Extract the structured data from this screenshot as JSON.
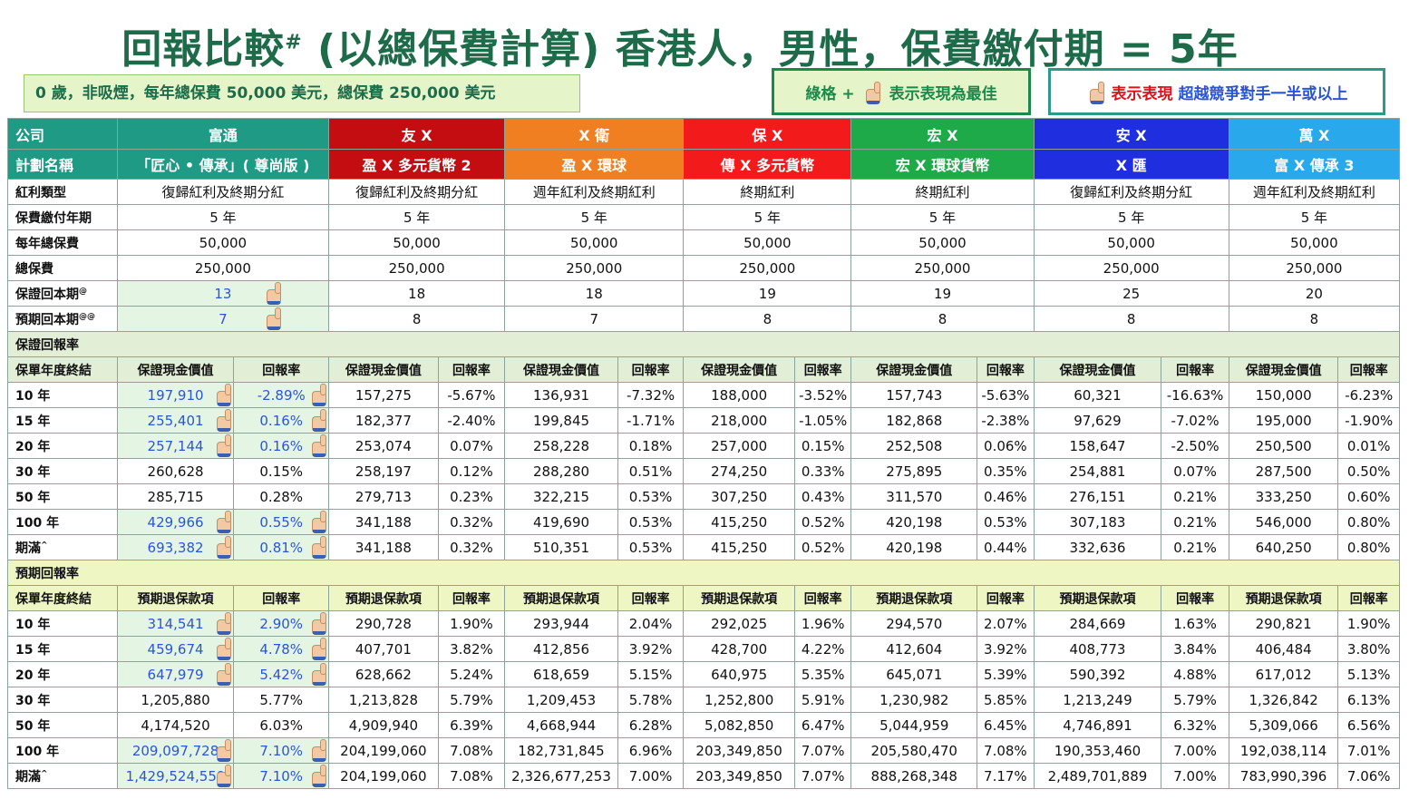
{
  "title": "回報比較",
  "title_mark": "#",
  "title_rest": " (以總保費計算) 香港人，男性，保費繳付期 = 5年",
  "subtitle": "0 歲，非吸煙，每年總保費 50,000 美元，總保費 250,000 美元",
  "legend_best": {
    "prefix": "綠格 +",
    "suffix": "表示表現為最佳"
  },
  "legend_beat": {
    "red": "表示表現",
    "blue": "超越競爭對手一半或以上"
  },
  "colors": {
    "teal": "#1f9a84",
    "darkred": "#c30d10",
    "orange": "#f07f22",
    "red": "#f21a1a",
    "green": "#1faa4a",
    "blue": "#1f2fe0",
    "sky": "#2aa8ec",
    "highlight": "#e4f6e3",
    "highlight_text": "#2b55d6"
  },
  "rows_top": {
    "company_label": "公司",
    "companies": [
      "富通",
      "友 X",
      "X 衛",
      "保 X",
      "宏 X",
      "安 X",
      "萬 X"
    ],
    "plan_label": "計劃名稱",
    "plans": [
      "「匠心 • 傳承」( 尊尚版 )",
      "盈 X 多元貨幣 2",
      "盈 X 環球",
      "傳 X 多元貨幣",
      "宏 X 環球貨幣",
      "X 匯",
      "富 X 傳承 3"
    ],
    "dividend_label": "紅利類型",
    "dividends": [
      "復歸紅利及終期分紅",
      "復歸紅利及終期分紅",
      "週年紅利及終期紅利",
      "終期紅利",
      "終期紅利",
      "復歸紅利及終期分紅",
      "週年紅利及終期紅利"
    ],
    "term_label": "保費繳付年期",
    "terms": [
      "5 年",
      "5 年",
      "5 年",
      "5 年",
      "5 年",
      "5 年",
      "5 年"
    ],
    "annual_label": "每年總保費",
    "annuals": [
      "50,000",
      "50,000",
      "50,000",
      "50,000",
      "50,000",
      "50,000",
      "50,000"
    ],
    "total_label": "總保費",
    "totals": [
      "250,000",
      "250,000",
      "250,000",
      "250,000",
      "250,000",
      "250,000",
      "250,000"
    ],
    "g_breakeven_label": "保證回本期",
    "g_breakeven_mark": "@",
    "g_breakeven": [
      "13",
      "18",
      "18",
      "19",
      "19",
      "25",
      "20"
    ],
    "p_breakeven_label": "預期回本期",
    "p_breakeven_mark": "@@",
    "p_breakeven": [
      "7",
      "8",
      "7",
      "8",
      "8",
      "8",
      "8"
    ]
  },
  "guaranteed": {
    "section": "保證回報率",
    "year_col": "保單年度終結",
    "value_col": "保證現金價值",
    "rate_col": "回報率",
    "rows": [
      {
        "year": "10 年",
        "cells": [
          "197,910",
          "-2.89%",
          "157,275",
          "-5.67%",
          "136,931",
          "-7.32%",
          "188,000",
          "-3.52%",
          "157,743",
          "-5.63%",
          "60,321",
          "-16.63%",
          "150,000",
          "-6.23%"
        ],
        "hl": true
      },
      {
        "year": "15 年",
        "cells": [
          "255,401",
          "0.16%",
          "182,377",
          "-2.40%",
          "199,845",
          "-1.71%",
          "218,000",
          "-1.05%",
          "182,868",
          "-2.38%",
          "97,629",
          "-7.02%",
          "195,000",
          "-1.90%"
        ],
        "hl": true
      },
      {
        "year": "20 年",
        "cells": [
          "257,144",
          "0.16%",
          "253,074",
          "0.07%",
          "258,228",
          "0.18%",
          "257,000",
          "0.15%",
          "252,508",
          "0.06%",
          "158,647",
          "-2.50%",
          "250,500",
          "0.01%"
        ],
        "hl": true
      },
      {
        "year": "30 年",
        "cells": [
          "260,628",
          "0.15%",
          "258,197",
          "0.12%",
          "288,280",
          "0.51%",
          "274,250",
          "0.33%",
          "275,895",
          "0.35%",
          "254,881",
          "0.07%",
          "287,500",
          "0.50%"
        ],
        "hl": false
      },
      {
        "year": "50 年",
        "cells": [
          "285,715",
          "0.28%",
          "279,713",
          "0.23%",
          "322,215",
          "0.53%",
          "307,250",
          "0.43%",
          "311,570",
          "0.46%",
          "276,151",
          "0.21%",
          "333,250",
          "0.60%"
        ],
        "hl": false
      },
      {
        "year": "100 年",
        "cells": [
          "429,966",
          "0.55%",
          "341,188",
          "0.32%",
          "419,690",
          "0.53%",
          "415,250",
          "0.52%",
          "420,198",
          "0.53%",
          "307,183",
          "0.21%",
          "546,000",
          "0.80%"
        ],
        "hl": true
      },
      {
        "year": "期滿",
        "mark": "^",
        "cells": [
          "693,382",
          "0.81%",
          "341,188",
          "0.32%",
          "510,351",
          "0.53%",
          "415,250",
          "0.52%",
          "420,198",
          "0.44%",
          "332,636",
          "0.21%",
          "640,250",
          "0.80%"
        ],
        "hl": true
      }
    ]
  },
  "projected": {
    "section": "預期回報率",
    "year_col": "保單年度終結",
    "value_col": "預期退保款項",
    "rate_col": "回報率",
    "rows": [
      {
        "year": "10 年",
        "cells": [
          "314,541",
          "2.90%",
          "290,728",
          "1.90%",
          "293,944",
          "2.04%",
          "292,025",
          "1.96%",
          "294,570",
          "2.07%",
          "284,669",
          "1.63%",
          "290,821",
          "1.90%"
        ],
        "hl": true
      },
      {
        "year": "15 年",
        "cells": [
          "459,674",
          "4.78%",
          "407,701",
          "3.82%",
          "412,856",
          "3.92%",
          "428,700",
          "4.22%",
          "412,604",
          "3.92%",
          "408,773",
          "3.84%",
          "406,484",
          "3.80%"
        ],
        "hl": true
      },
      {
        "year": "20 年",
        "cells": [
          "647,979",
          "5.42%",
          "628,662",
          "5.24%",
          "618,659",
          "5.15%",
          "640,975",
          "5.35%",
          "645,071",
          "5.39%",
          "590,392",
          "4.88%",
          "617,012",
          "5.13%"
        ],
        "hl": true
      },
      {
        "year": "30 年",
        "cells": [
          "1,205,880",
          "5.77%",
          "1,213,828",
          "5.79%",
          "1,209,453",
          "5.78%",
          "1,252,800",
          "5.91%",
          "1,230,982",
          "5.85%",
          "1,213,249",
          "5.79%",
          "1,326,842",
          "6.13%"
        ],
        "hl": false
      },
      {
        "year": "50 年",
        "cells": [
          "4,174,520",
          "6.03%",
          "4,909,940",
          "6.39%",
          "4,668,944",
          "6.28%",
          "5,082,850",
          "6.47%",
          "5,044,959",
          "6.45%",
          "4,746,891",
          "6.32%",
          "5,309,066",
          "6.56%"
        ],
        "hl": false
      },
      {
        "year": "100 年",
        "cells": [
          "209,097,728",
          "7.10%",
          "204,199,060",
          "7.08%",
          "182,731,845",
          "6.96%",
          "203,349,850",
          "7.07%",
          "205,580,470",
          "7.08%",
          "190,353,460",
          "7.00%",
          "192,038,114",
          "7.01%"
        ],
        "hl": true
      },
      {
        "year": "期滿",
        "mark": "^",
        "cells": [
          "1,429,524,559",
          "7.10%",
          "204,199,060",
          "7.08%",
          "2,326,677,253",
          "7.00%",
          "203,349,850",
          "7.07%",
          "888,268,348",
          "7.17%",
          "2,489,701,889",
          "7.00%",
          "783,990,396",
          "7.06%"
        ],
        "hl": true
      }
    ]
  }
}
